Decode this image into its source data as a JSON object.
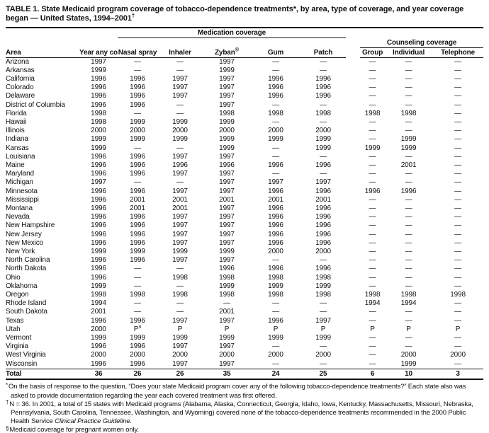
{
  "title": {
    "text": "TABLE 1. State Medicaid program coverage of tobacco-dependence treatments*, by area, type of coverage, and year coverage began — United States, 1994–2001",
    "sup": "†"
  },
  "table": {
    "headers": {
      "area": "Area",
      "year_began": "Year any\ncoverage\nbegan",
      "medication_group": "Medication coverage",
      "counseling_group": "Counseling coverage",
      "nasal_spray": "Nasal\nspray",
      "inhaler": "Inhaler",
      "zyban": "Zyban",
      "zyban_sup": "®",
      "gum": "Gum",
      "patch": "Patch",
      "group": "Group",
      "individual": "Individual",
      "telephone": "Telephone"
    },
    "rows": [
      {
        "area": "Arizona",
        "values": [
          "1997",
          "—",
          "—",
          "1997",
          "—",
          "—",
          "—",
          "—",
          "—"
        ]
      },
      {
        "area": "Arkansas",
        "values": [
          "1999",
          "—",
          "—",
          "1999",
          "—",
          "—",
          "—",
          "—",
          "—"
        ]
      },
      {
        "area": "California",
        "values": [
          "1996",
          "1996",
          "1997",
          "1997",
          "1996",
          "1996",
          "—",
          "—",
          "—"
        ]
      },
      {
        "area": "Colorado",
        "values": [
          "1996",
          "1996",
          "1997",
          "1997",
          "1996",
          "1996",
          "—",
          "—",
          "—"
        ]
      },
      {
        "area": "Delaware",
        "values": [
          "1996",
          "1996",
          "1997",
          "1997",
          "1996",
          "1996",
          "—",
          "—",
          "—"
        ]
      },
      {
        "area": "District of Columbia",
        "values": [
          "1996",
          "1996",
          "—",
          "1997",
          "—",
          "—",
          "—",
          "—",
          "—"
        ]
      },
      {
        "area": "Florida",
        "values": [
          "1998",
          "—",
          "—",
          "1998",
          "1998",
          "1998",
          "1998",
          "1998",
          "—"
        ]
      },
      {
        "area": "Hawaii",
        "values": [
          "1998",
          "1999",
          "1999",
          "1999",
          "—",
          "—",
          "—",
          "—",
          "—"
        ]
      },
      {
        "area": "Illinois",
        "values": [
          "2000",
          "2000",
          "2000",
          "2000",
          "2000",
          "2000",
          "—",
          "—",
          "—"
        ]
      },
      {
        "area": "Indiana",
        "values": [
          "1999",
          "1999",
          "1999",
          "1999",
          "1999",
          "1999",
          "—",
          "1999",
          "—"
        ]
      },
      {
        "area": "Kansas",
        "values": [
          "1999",
          "—",
          "—",
          "1999",
          "—",
          "1999",
          "1999",
          "1999",
          "—"
        ]
      },
      {
        "area": "Louisiana",
        "values": [
          "1996",
          "1996",
          "1997",
          "1997",
          "—",
          "—",
          "—",
          "—",
          "—"
        ]
      },
      {
        "area": "Maine",
        "values": [
          "1996",
          "1996",
          "1996",
          "1996",
          "1996",
          "1996",
          "—",
          "2001",
          "—"
        ]
      },
      {
        "area": "Maryland",
        "values": [
          "1996",
          "1996",
          "1997",
          "1997",
          "—",
          "—",
          "—",
          "—",
          "—"
        ]
      },
      {
        "area": "Michigan",
        "values": [
          "1997",
          "—",
          "—",
          "1997",
          "1997",
          "1997",
          "—",
          "—",
          "—"
        ]
      },
      {
        "area": "Minnesota",
        "values": [
          "1996",
          "1996",
          "1997",
          "1997",
          "1996",
          "1996",
          "1996",
          "1996",
          "—"
        ]
      },
      {
        "area": "Mississippi",
        "values": [
          "1996",
          "2001",
          "2001",
          "2001",
          "2001",
          "2001",
          "—",
          "—",
          "—"
        ]
      },
      {
        "area": "Montana",
        "values": [
          "1996",
          "2001",
          "2001",
          "1997",
          "1996",
          "1996",
          "—",
          "—",
          "—"
        ]
      },
      {
        "area": "Nevada",
        "values": [
          "1996",
          "1996",
          "1997",
          "1997",
          "1996",
          "1996",
          "—",
          "—",
          "—"
        ]
      },
      {
        "area": "New Hampshire",
        "values": [
          "1996",
          "1996",
          "1997",
          "1997",
          "1996",
          "1996",
          "—",
          "—",
          "—"
        ]
      },
      {
        "area": "New Jersey",
        "values": [
          "1996",
          "1996",
          "1997",
          "1997",
          "1996",
          "1996",
          "—",
          "—",
          "—"
        ]
      },
      {
        "area": "New Mexico",
        "values": [
          "1996",
          "1996",
          "1997",
          "1997",
          "1996",
          "1996",
          "—",
          "—",
          "—"
        ]
      },
      {
        "area": "New York",
        "values": [
          "1999",
          "1999",
          "1999",
          "1999",
          "2000",
          "2000",
          "—",
          "—",
          "—"
        ]
      },
      {
        "area": "North Carolina",
        "values": [
          "1996",
          "1996",
          "1997",
          "1997",
          "—",
          "—",
          "—",
          "—",
          "—"
        ]
      },
      {
        "area": "North Dakota",
        "values": [
          "1996",
          "—",
          "—",
          "1996",
          "1996",
          "1996",
          "—",
          "—",
          "—"
        ]
      },
      {
        "area": "Ohio",
        "values": [
          "1996",
          "—",
          "1998",
          "1998",
          "1998",
          "1998",
          "—",
          "—",
          "—"
        ]
      },
      {
        "area": "Oklahoma",
        "values": [
          "1999",
          "—",
          "—",
          "1999",
          "1999",
          "1999",
          "—",
          "—",
          "—"
        ]
      },
      {
        "area": "Oregon",
        "values": [
          "1998",
          "1998",
          "1998",
          "1998",
          "1998",
          "1998",
          "1998",
          "1998",
          "1998"
        ]
      },
      {
        "area": "Rhode Island",
        "values": [
          "1994",
          "—",
          "—",
          "—",
          "—",
          "—",
          "1994",
          "1994",
          "—"
        ]
      },
      {
        "area": "South Dakota",
        "values": [
          "2001",
          "—",
          "—",
          "2001",
          "—",
          "—",
          "—",
          "—",
          "—"
        ]
      },
      {
        "area": "Texas",
        "values": [
          "1996",
          "1996",
          "1997",
          "1997",
          "1996",
          "1997",
          "—",
          "—",
          "—"
        ]
      },
      {
        "area": "Utah",
        "values": [
          "2000",
          "P§",
          "P",
          "P",
          "P",
          "P",
          "P",
          "P",
          "P"
        ]
      },
      {
        "area": "Vermont",
        "values": [
          "1999",
          "1999",
          "1999",
          "1999",
          "1999",
          "1999",
          "—",
          "—",
          "—"
        ]
      },
      {
        "area": "Virginia",
        "values": [
          "1996",
          "1996",
          "1997",
          "1997",
          "—",
          "—",
          "—",
          "—",
          "—"
        ]
      },
      {
        "area": "West Virginia",
        "values": [
          "2000",
          "2000",
          "2000",
          "2000",
          "2000",
          "2000",
          "—",
          "2000",
          "2000"
        ]
      },
      {
        "area": "Wisconsin",
        "values": [
          "1996",
          "1996",
          "1997",
          "1997",
          "—",
          "—",
          "—",
          "1999",
          "—"
        ]
      }
    ],
    "total": {
      "area": "Total",
      "values": [
        "36",
        "26",
        "26",
        "35",
        "24",
        "25",
        "6",
        "10",
        "3"
      ]
    }
  },
  "footnotes": [
    {
      "marker": "*",
      "text": "On the basis of response to the question, “Does your state Medicaid program cover any of the following tobacco-dependence treatments?” Each state also was asked to provide documentation regarding the year each covered treatment was first offered."
    },
    {
      "marker": "†",
      "text": "N = 36. In 2001, a total of 15 states with Medicaid programs (Alabama, Alaska, Connecticut, Georgia, Idaho, Iowa, Kentucky, Massachusetts, Missouri, Nebraska, Pennsylvania, South Carolina, Tennessee, Washington, and Wyoming) covered none of the tobacco-dependence treatments recommended in the 2000 Public Health Service ",
      "italic": "Clinical Practice Guideline."
    },
    {
      "marker": "§",
      "text": "Medicaid coverage for pregnant women only."
    }
  ]
}
